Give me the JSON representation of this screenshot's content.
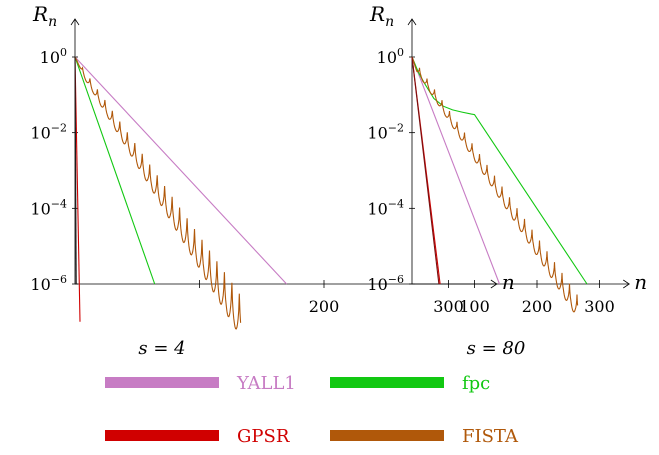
{
  "chart_data": [
    {
      "type": "line",
      "id": "left",
      "ylabel": "R",
      "ylabel_sub": "n",
      "xlabel": "n",
      "y_scale": "log",
      "ylim": [
        1e-06,
        1
      ],
      "xlim": [
        0,
        330
      ],
      "y_ticks": [
        {
          "value": 1,
          "base": "10",
          "exp": "0"
        },
        {
          "value": 0.01,
          "base": "10",
          "exp": "−2"
        },
        {
          "value": 0.0001,
          "base": "10",
          "exp": "−4"
        },
        {
          "value": 1e-06,
          "base": "10",
          "exp": "−6"
        }
      ],
      "x_ticks": [
        {
          "value": 100,
          "label": ""
        },
        {
          "value": 200,
          "label": "200"
        },
        {
          "value": 300,
          "label": "300"
        }
      ],
      "caption": "s = 4",
      "series": [
        {
          "name": "YALL1",
          "color": "#c77cc4",
          "x": [
            0,
            170
          ],
          "y": [
            1,
            1e-06
          ]
        },
        {
          "name": "fpc",
          "color": "#12c812",
          "x": [
            0,
            64
          ],
          "y": [
            1,
            1e-06
          ]
        },
        {
          "name": "GPSR",
          "color": "#d00000",
          "x": [
            0,
            4
          ],
          "y": [
            1,
            1e-07
          ]
        },
        {
          "name": "FISTA",
          "color": "#b0580a",
          "start": 0,
          "end": 133,
          "period": 6,
          "amp_start": 0.15,
          "amp_end": 1.1
        }
      ],
      "extra_lines": [
        {
          "color": "#1a1a1a",
          "x": [
            0,
            1
          ],
          "y": [
            1,
            1e-06
          ]
        }
      ]
    },
    {
      "type": "line",
      "id": "right",
      "ylabel": "R",
      "ylabel_sub": "n",
      "xlabel": "n",
      "y_scale": "log",
      "ylim": [
        1e-06,
        1
      ],
      "xlim": [
        0,
        330
      ],
      "y_ticks": [
        {
          "value": 1,
          "base": "10",
          "exp": "0"
        },
        {
          "value": 0.01,
          "base": "10",
          "exp": "−2"
        },
        {
          "value": 0.0001,
          "base": "10",
          "exp": "−4"
        },
        {
          "value": 1e-06,
          "base": "10",
          "exp": "−6"
        }
      ],
      "x_ticks": [
        {
          "value": 100,
          "label": "100"
        },
        {
          "value": 200,
          "label": "200"
        },
        {
          "value": 300,
          "label": "300"
        }
      ],
      "caption": "s = 80",
      "series": [
        {
          "name": "YALL1",
          "color": "#c77cc4",
          "x": [
            0,
            140
          ],
          "y": [
            1,
            1e-06
          ]
        },
        {
          "name": "fpc",
          "color": "#12c812",
          "x": [
            0,
            10,
            20,
            35,
            50,
            65,
            80,
            95,
            100,
            280
          ],
          "y": [
            1,
            0.4,
            0.2,
            0.08,
            0.05,
            0.04,
            0.035,
            0.031,
            0.03,
            1e-06
          ]
        },
        {
          "name": "GPSR",
          "color": "#d00000",
          "x": [
            0,
            45
          ],
          "y": [
            1,
            1e-06
          ]
        },
        {
          "name": "FISTA",
          "color": "#b0580a",
          "start": 0,
          "end": 265,
          "period": 12,
          "amp_start": 0.2,
          "amp_end": 0.6
        }
      ],
      "extra_lines": [
        {
          "color": "#7a1010",
          "x": [
            0,
            43
          ],
          "y": [
            1,
            1e-06
          ]
        }
      ]
    }
  ],
  "legend": [
    {
      "name": "YALL1",
      "color": "#c77cc4"
    },
    {
      "name": "fpc",
      "color": "#12c812"
    },
    {
      "name": "GPSR",
      "color": "#d00000"
    },
    {
      "name": "FISTA",
      "color": "#b0580a"
    }
  ]
}
